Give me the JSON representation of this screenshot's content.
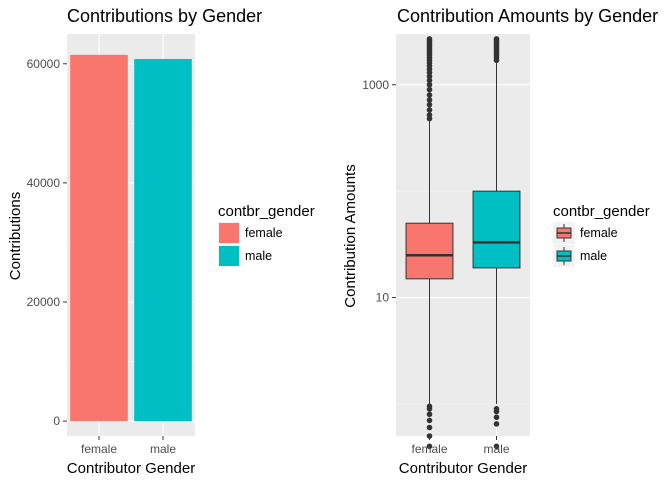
{
  "chart_data": [
    {
      "type": "bar",
      "title": "Contributions by Gender",
      "xlabel": "Contributor Gender",
      "ylabel": "Contributions",
      "categories": [
        "female",
        "male"
      ],
      "values": [
        61500,
        60800
      ],
      "ylim": [
        -2500,
        65000
      ],
      "yticks": [
        0,
        20000,
        40000,
        60000
      ],
      "ytick_labels": [
        "0",
        "20000",
        "40000",
        "60000"
      ],
      "colors": [
        "#F8766D",
        "#00BFC4"
      ],
      "grid": true,
      "legend": {
        "title": "contbr_gender",
        "entries": [
          "female",
          "male"
        ],
        "placement": "right"
      }
    },
    {
      "type": "box",
      "title": "Contribution Amounts by Gender",
      "xlabel": "Contributor Gender",
      "ylabel": "Contribution Amounts",
      "categories": [
        "female",
        "male"
      ],
      "y_scale": "log10",
      "ylim": [
        0.5,
        3000
      ],
      "yticks": [
        10,
        1000
      ],
      "ytick_labels": [
        "10",
        "1000"
      ],
      "colors": [
        "#F8766D",
        "#00BFC4"
      ],
      "grid": true,
      "series": [
        {
          "name": "female",
          "q1": 15,
          "median": 25,
          "q3": 50,
          "whisker_low": 1,
          "whisker_high": 450,
          "outliers_low": [
            0.4,
            0.5,
            0.6,
            0.7,
            0.8,
            0.9,
            0.95
          ],
          "outliers_high": [
            480,
            520,
            580,
            650,
            720,
            800,
            900,
            1000,
            1100,
            1200,
            1300,
            1400,
            1500,
            1600,
            1700,
            1800,
            1900,
            2000,
            2100,
            2200,
            2300,
            2400,
            2500,
            2600,
            2700
          ]
        },
        {
          "name": "male",
          "q1": 19,
          "median": 33,
          "q3": 100,
          "whisker_low": 1,
          "whisker_high": 1600,
          "outliers_low": [
            0.4,
            0.65,
            0.75,
            0.85,
            0.9
          ],
          "outliers_high": [
            1700,
            1800,
            1900,
            2000,
            2100,
            2200,
            2300,
            2400,
            2500,
            2600,
            2700
          ]
        }
      ],
      "legend": {
        "title": "contbr_gender",
        "entries": [
          "female",
          "male"
        ],
        "placement": "right"
      }
    }
  ]
}
